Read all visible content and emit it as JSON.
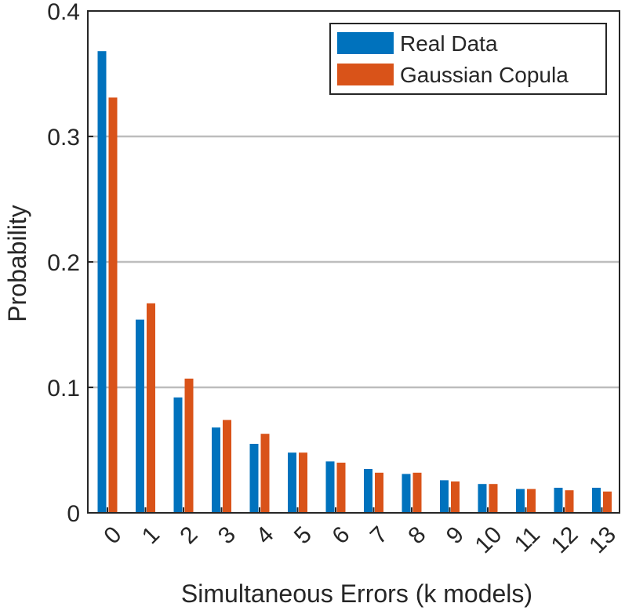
{
  "chart_data": {
    "type": "bar",
    "xlabel": "Simultaneous Errors (k models)",
    "ylabel": "Probability",
    "categories": [
      "0",
      "1",
      "2",
      "3",
      "4",
      "5",
      "6",
      "7",
      "8",
      "9",
      "10",
      "11",
      "12",
      "13"
    ],
    "ylim": [
      0,
      0.4
    ],
    "yticks": [
      "0",
      "0.1",
      "0.2",
      "0.3",
      "0.4"
    ],
    "grid": "horizontal",
    "legend_position": "top-right",
    "series": [
      {
        "name": "Real Data",
        "color": "#0072BD",
        "values": [
          0.368,
          0.154,
          0.092,
          0.068,
          0.055,
          0.048,
          0.041,
          0.035,
          0.031,
          0.026,
          0.023,
          0.019,
          0.02,
          0.02
        ]
      },
      {
        "name": "Gaussian Copula",
        "color": "#D95319",
        "values": [
          0.331,
          0.167,
          0.107,
          0.074,
          0.063,
          0.048,
          0.04,
          0.032,
          0.032,
          0.025,
          0.023,
          0.019,
          0.018,
          0.017
        ]
      }
    ]
  }
}
